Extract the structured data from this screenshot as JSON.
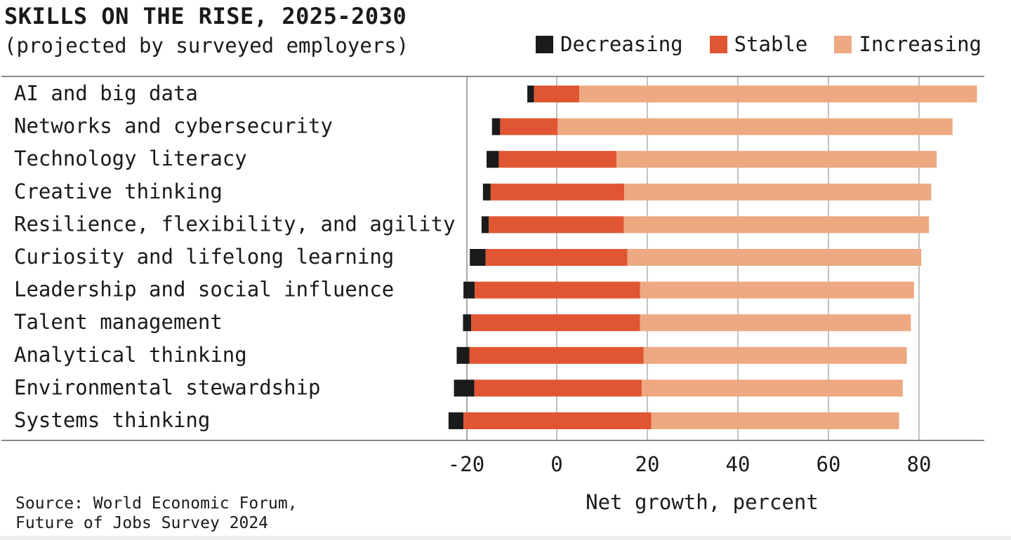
{
  "chart_data": {
    "type": "bar",
    "stacked": true,
    "orientation": "horizontal",
    "title": "SKILLS ON THE RISE, 2025-2030",
    "subtitle": "(projected by surveyed employers)",
    "xlabel": "Net growth, percent",
    "ylabel": "",
    "xlim": [
      -27,
      94
    ],
    "xticks": [
      -20,
      0,
      20,
      40,
      60,
      80
    ],
    "legend_position": "top-right",
    "categories": [
      "AI and big data",
      "Networks and cybersecurity",
      "Technology literacy",
      "Creative thinking",
      "Resilience, flexibility, and agility",
      "Curiosity and lifelong learning",
      "Leadership and social influence",
      "Talent management",
      "Analytical thinking",
      "Environmental stewardship",
      "Systems thinking"
    ],
    "series": [
      {
        "name": "Decreasing",
        "color": "#1b1b1b",
        "values": [
          -1.5,
          -1.8,
          -2.7,
          -1.7,
          -1.6,
          -3.5,
          -2.5,
          -1.8,
          -2.8,
          -4.5,
          -3.3
        ]
      },
      {
        "name": "Stable",
        "color": "#e05633",
        "values": [
          10,
          12.7,
          26,
          29.5,
          29.8,
          31.3,
          36.5,
          37.3,
          38.5,
          37,
          41.5
        ]
      },
      {
        "name": "Increasing",
        "color": "#eda982",
        "values": [
          87.8,
          87.2,
          70.7,
          67.8,
          67.4,
          64.9,
          60.5,
          59.8,
          58.1,
          57.6,
          54.7
        ]
      }
    ],
    "source": "Source: World Economic Forum,\nFuture of Jobs Survey 2024"
  },
  "source_lines": [
    "Source: World Economic Forum,",
    "Future of Jobs Survey 2024"
  ]
}
